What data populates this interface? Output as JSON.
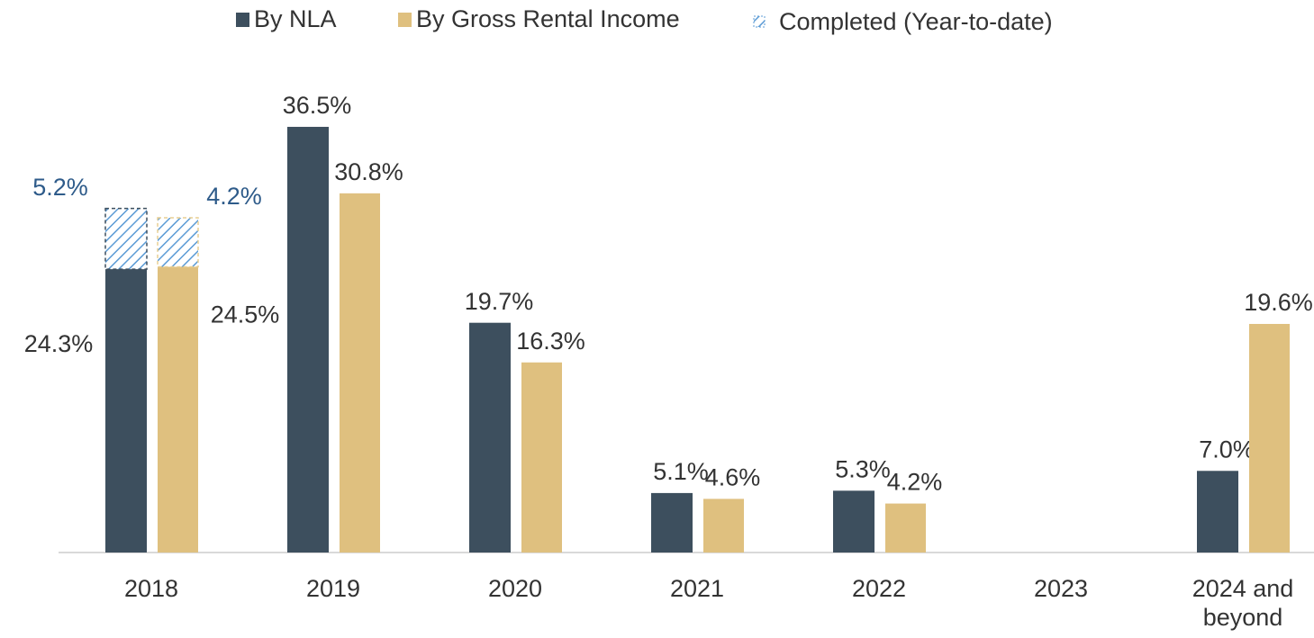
{
  "chart_data": {
    "type": "bar",
    "categories": [
      "2018",
      "2019",
      "2020",
      "2021",
      "2022",
      "2023",
      "2024 and beyond"
    ],
    "series": [
      {
        "name": "By NLA",
        "color": "#3d4f5e",
        "values": [
          24.3,
          36.5,
          19.7,
          5.1,
          5.3,
          null,
          7.0
        ],
        "value_labels": [
          "24.3%",
          "36.5%",
          "19.7%",
          "5.1%",
          "5.3%",
          null,
          "7.0%"
        ],
        "completed": [
          5.2,
          null,
          null,
          null,
          null,
          null,
          null
        ],
        "completed_labels": [
          "5.2%",
          null,
          null,
          null,
          null,
          null,
          null
        ]
      },
      {
        "name": "By Gross Rental Income",
        "color": "#dfc07f",
        "values": [
          24.5,
          30.8,
          16.3,
          4.6,
          4.2,
          null,
          19.6
        ],
        "value_labels": [
          "24.5%",
          "30.8%",
          "16.3%",
          "4.6%",
          "4.2%",
          null,
          "19.6%"
        ],
        "completed": [
          4.2,
          null,
          null,
          null,
          null,
          null,
          null
        ],
        "completed_labels": [
          "4.2%",
          null,
          null,
          null,
          null,
          null,
          null
        ]
      }
    ],
    "completed_legend": {
      "name": "Completed (Year-to-date)",
      "color": "#5b9bd5"
    },
    "legend": "top"
  }
}
